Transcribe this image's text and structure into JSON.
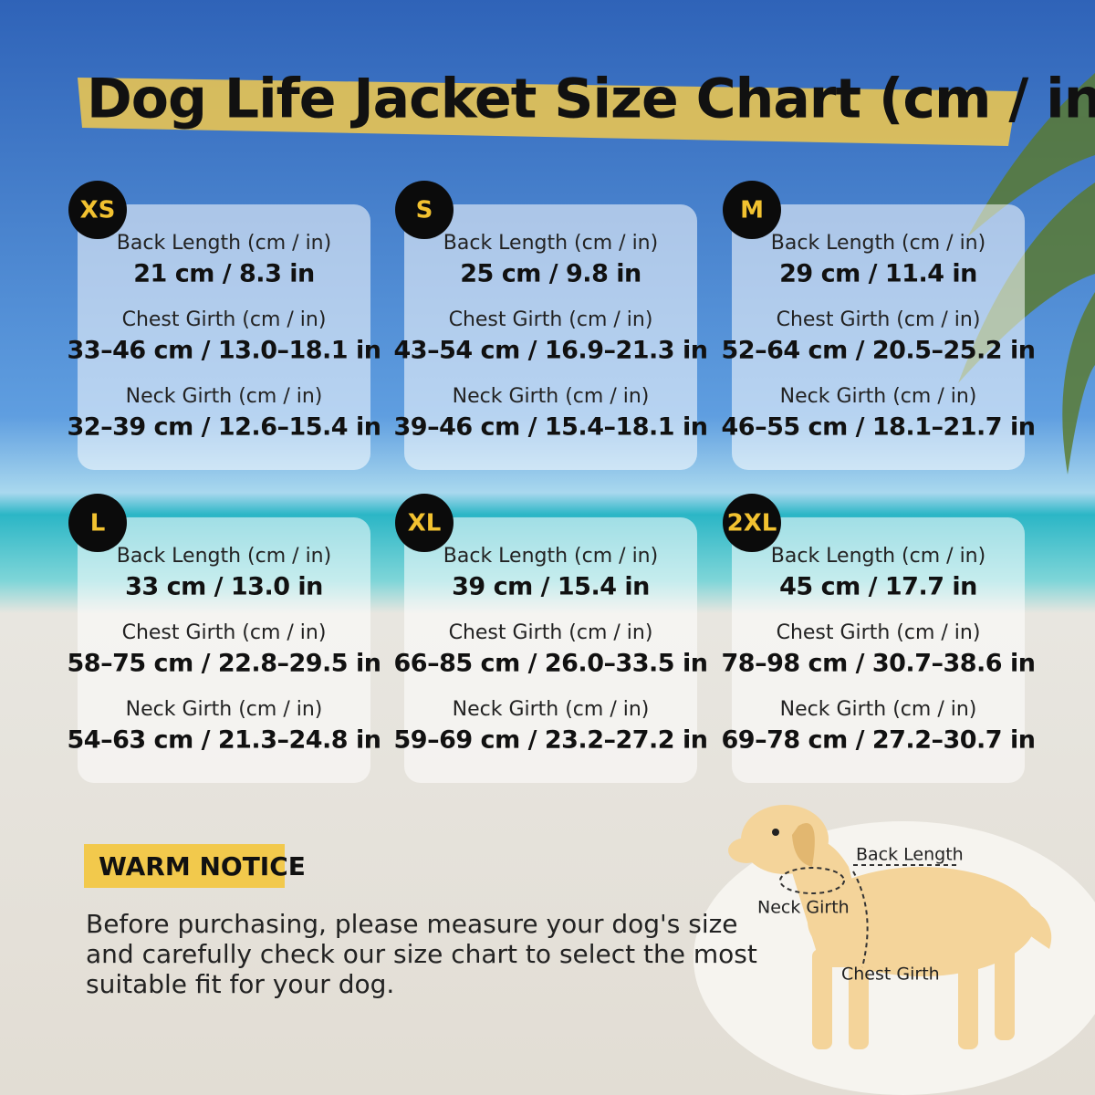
{
  "header": {
    "title": "Dog Life Jacket Size Chart (cm / in)"
  },
  "sizes": [
    {
      "size": "XS",
      "rows": [
        {
          "label": "Back Length (cm / in)",
          "value": "21 cm / 8.3 in"
        },
        {
          "label": "Chest Girth (cm / in)",
          "value": "33–46 cm / 13.0–18.1 in"
        },
        {
          "label": "Neck Girth (cm / in)",
          "value": "32–39 cm / 12.6–15.4 in"
        }
      ]
    },
    {
      "size": "S",
      "rows": [
        {
          "label": "Back Length (cm / in)",
          "value": "25 cm / 9.8 in"
        },
        {
          "label": "Chest Girth (cm / in)",
          "value": "43–54 cm / 16.9–21.3 in"
        },
        {
          "label": "Neck Girth (cm / in)",
          "value": "39–46 cm / 15.4–18.1 in"
        }
      ]
    },
    {
      "size": "M",
      "rows": [
        {
          "label": "Back Length (cm / in)",
          "value": "29 cm / 11.4 in"
        },
        {
          "label": "Chest Girth (cm / in)",
          "value": "52–64 cm / 20.5–25.2 in"
        },
        {
          "label": "Neck Girth (cm / in)",
          "value": "46–55 cm / 18.1–21.7 in"
        }
      ]
    },
    {
      "size": "L",
      "rows": [
        {
          "label": "Back Length (cm / in)",
          "value": "33 cm / 13.0 in"
        },
        {
          "label": "Chest Girth (cm / in)",
          "value": "58–75 cm / 22.8–29.5 in"
        },
        {
          "label": "Neck Girth (cm / in)",
          "value": "54–63 cm / 21.3–24.8 in"
        }
      ]
    },
    {
      "size": "XL",
      "rows": [
        {
          "label": "Back Length (cm / in)",
          "value": "39 cm / 15.4 in"
        },
        {
          "label": "Chest Girth (cm / in)",
          "value": "66–85 cm / 26.0–33.5 in"
        },
        {
          "label": "Neck Girth (cm / in)",
          "value": "59–69 cm / 23.2–27.2 in"
        }
      ]
    },
    {
      "size": "2XL",
      "rows": [
        {
          "label": "Back Length (cm / in)",
          "value": "45 cm / 17.7 in"
        },
        {
          "label": "Chest Girth (cm / in)",
          "value": "78–98 cm / 30.7–38.6 in"
        },
        {
          "label": "Neck Girth (cm / in)",
          "value": "69–78 cm / 27.2–30.7 in"
        }
      ]
    }
  ],
  "notice": {
    "title": "WARM NOTICE",
    "lines": [
      "Before purchasing, please measure your dog's size",
      "and carefully check our size chart to select the most",
      "suitable fit for your dog."
    ]
  },
  "diagram": {
    "back": "Back Length",
    "neck": "Neck Girth",
    "chest": "Chest Girth"
  }
}
